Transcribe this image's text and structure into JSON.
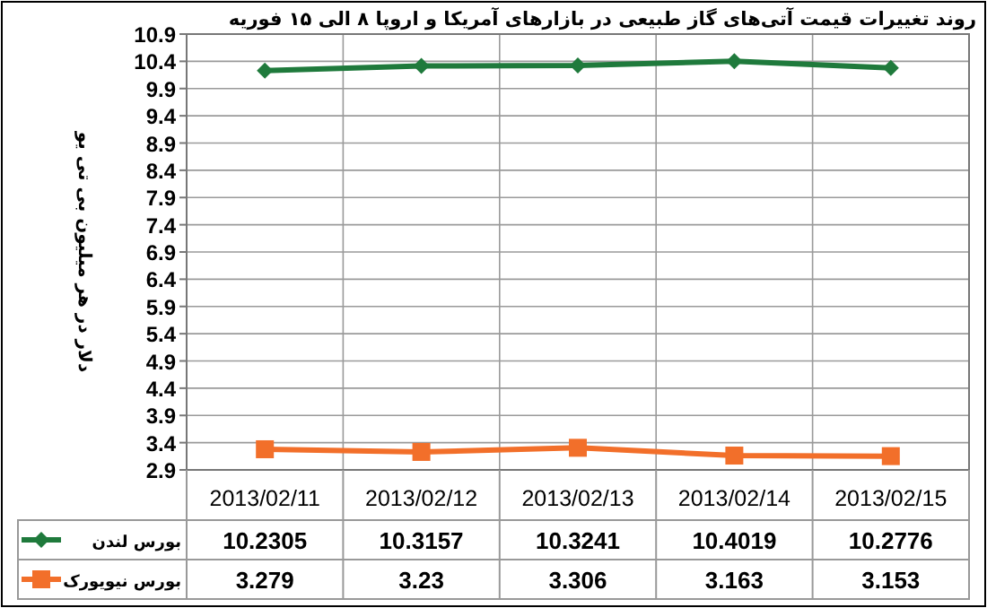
{
  "chart_data": {
    "type": "line",
    "title": "روند تغییرات قیمت آتی‌های گاز طبیعی در بازارهای آمریکا و اروپا ۸ الی ۱۵ فوریه",
    "ylabel": "دلار در هر میلیون بی تی یو",
    "categories": [
      "2013/02/11",
      "2013/02/12",
      "2013/02/13",
      "2013/02/14",
      "2013/02/15"
    ],
    "series": [
      {
        "name": "بورس لندن",
        "color": "#1f7a3c",
        "marker": "diamond",
        "values": [
          10.2305,
          10.3157,
          10.3241,
          10.4019,
          10.2776
        ]
      },
      {
        "name": "بورس نیویورک",
        "color": "#f26f2a",
        "marker": "square",
        "values": [
          3.279,
          3.23,
          3.306,
          3.163,
          3.153
        ]
      }
    ],
    "ylim": [
      2.9,
      10.9
    ],
    "yticks": [
      2.9,
      3.4,
      3.9,
      4.4,
      4.9,
      5.4,
      5.9,
      6.4,
      6.9,
      7.4,
      7.9,
      8.4,
      8.9,
      9.4,
      9.9,
      10.4,
      10.9
    ],
    "grid": true,
    "legend": "bottom left",
    "data_labels": true,
    "line_style": "solid"
  }
}
